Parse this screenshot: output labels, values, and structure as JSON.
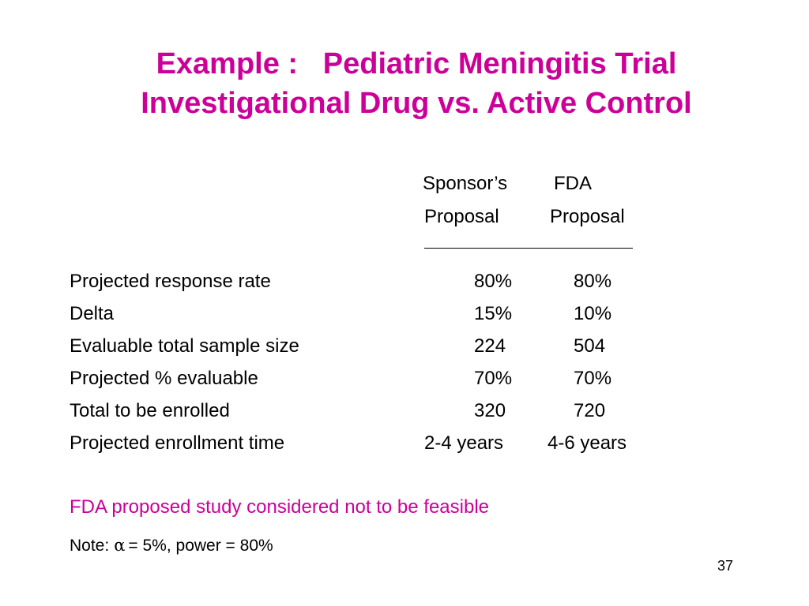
{
  "title": {
    "line1": "Example :   Pediatric Meningitis Trial",
    "line2": "Investigational Drug vs. Active Control"
  },
  "table": {
    "headers": {
      "sponsor_line1": "Sponsor’s",
      "sponsor_line2": "Proposal",
      "fda_line1": "FDA",
      "fda_line2": "Proposal"
    },
    "rows": [
      {
        "label": "Projected response rate",
        "sponsor": "80%",
        "fda": "80%"
      },
      {
        "label": "Delta",
        "sponsor": "15%",
        "fda": "10%"
      },
      {
        "label": "Evaluable total sample size",
        "sponsor": "224",
        "fda": "504"
      },
      {
        "label": "Projected % evaluable",
        "sponsor": "70%",
        "fda": "70%"
      },
      {
        "label": "Total to be enrolled",
        "sponsor": "320",
        "fda": "720"
      },
      {
        "label": "Projected enrollment time",
        "sponsor": "2-4 years",
        "fda": "4-6 years"
      }
    ]
  },
  "conclusion": "FDA proposed study considered not to be feasible",
  "note": {
    "prefix": "Note:",
    "alpha": "α",
    "text": "= 5%, power = 80%"
  },
  "page_number": "37",
  "colors": {
    "accent": "#cc0099",
    "text": "#000000"
  }
}
